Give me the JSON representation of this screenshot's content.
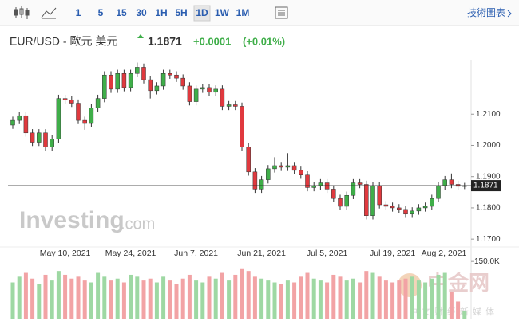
{
  "toolbar": {
    "intervals": [
      "1",
      "5",
      "15",
      "30",
      "1H",
      "5H",
      "1D",
      "1W",
      "1M"
    ],
    "active_index": 6,
    "link": "技術圖表"
  },
  "header": {
    "title": "EUR/USD - 歐元 美元",
    "price": "1.1871",
    "change": "+0.0001",
    "change_pct": "(+0.01%)"
  },
  "watermark": {
    "brand": "Investing",
    "suffix": ".com",
    "site": "中金网",
    "site_sub": "中文财经新媒体"
  },
  "chart_data": {
    "type": "candlestick",
    "categories": [
      null,
      null,
      null,
      null,
      null,
      null,
      null,
      null,
      "May 10, 2021",
      null,
      null,
      null,
      null,
      null,
      null,
      null,
      null,
      null,
      "May 24, 2021",
      null,
      null,
      null,
      null,
      null,
      null,
      null,
      null,
      null,
      "Jun 7, 2021",
      null,
      null,
      null,
      null,
      null,
      null,
      null,
      null,
      null,
      "Jun 21, 2021",
      null,
      null,
      null,
      null,
      null,
      null,
      null,
      null,
      null,
      "Jul 5, 2021",
      null,
      null,
      null,
      null,
      null,
      null,
      null,
      null,
      null,
      "Jul 19, 2021",
      null,
      null,
      null,
      null,
      null,
      null,
      null,
      null,
      null,
      "Aug 2, 2021",
      null
    ],
    "open": [
      1.2065,
      1.208,
      1.2095,
      1.204,
      1.201,
      1.204,
      1.1995,
      1.202,
      1.215,
      1.2145,
      1.2135,
      1.208,
      1.207,
      1.212,
      1.215,
      1.2225,
      1.218,
      1.223,
      1.2185,
      1.223,
      1.225,
      1.221,
      1.2175,
      1.219,
      1.223,
      1.2225,
      1.2215,
      1.219,
      1.214,
      1.218,
      1.2185,
      1.217,
      1.218,
      1.2125,
      1.213,
      1.2125,
      1.1995,
      1.1915,
      1.186,
      1.189,
      1.1925,
      1.1935,
      1.193,
      1.1935,
      1.192,
      1.1905,
      1.1865,
      1.187,
      1.188,
      1.186,
      1.183,
      1.1805,
      1.184,
      1.188,
      1.1875,
      1.1775,
      1.187,
      1.181,
      1.1805,
      1.18,
      1.1795,
      1.178,
      1.179,
      1.18,
      1.1805,
      1.183,
      1.187,
      1.189,
      1.1875,
      1.1869
    ],
    "high": [
      1.2092,
      1.2107,
      1.2107,
      1.2052,
      1.2052,
      1.2052,
      1.2032,
      1.2162,
      1.2162,
      1.2157,
      1.2147,
      1.2092,
      1.2132,
      1.2162,
      1.2237,
      1.2237,
      1.2242,
      1.2242,
      1.2242,
      1.2265,
      1.2262,
      1.2222,
      1.2202,
      1.2242,
      1.2242,
      1.2237,
      1.2227,
      1.2202,
      1.2192,
      1.2197,
      1.2197,
      1.2192,
      1.2192,
      1.2142,
      1.2142,
      1.2137,
      1.2007,
      1.1927,
      1.1902,
      1.1937,
      1.1962,
      1.1947,
      1.1975,
      1.1947,
      1.1932,
      1.1917,
      1.1882,
      1.1892,
      1.1892,
      1.1872,
      1.1842,
      1.1852,
      1.1892,
      1.1892,
      1.1887,
      1.1882,
      1.1882,
      1.1822,
      1.1817,
      1.1812,
      1.1807,
      1.1802,
      1.1812,
      1.1817,
      1.1842,
      1.1882,
      1.1902,
      1.191,
      1.1887,
      1.188
    ],
    "low": [
      1.2053,
      1.2068,
      1.2028,
      1.1998,
      1.1998,
      1.1983,
      1.1983,
      1.2008,
      1.2133,
      1.2123,
      1.2068,
      1.205,
      1.2058,
      1.2108,
      1.2138,
      1.2168,
      1.2168,
      1.2173,
      1.2173,
      1.2218,
      1.2198,
      1.215,
      1.2163,
      1.2178,
      1.2213,
      1.2203,
      1.2178,
      1.2128,
      1.2128,
      1.2168,
      1.2158,
      1.2158,
      1.2113,
      1.2113,
      1.2113,
      1.1983,
      1.1903,
      1.1848,
      1.1848,
      1.1878,
      1.1913,
      1.1918,
      1.1918,
      1.1908,
      1.1893,
      1.1853,
      1.1853,
      1.1858,
      1.1848,
      1.1818,
      1.1793,
      1.1793,
      1.1828,
      1.1863,
      1.1763,
      1.1763,
      1.1798,
      1.1793,
      1.1788,
      1.1783,
      1.1768,
      1.1768,
      1.1778,
      1.1788,
      1.1793,
      1.1818,
      1.1858,
      1.1863,
      1.1857,
      1.186
    ],
    "close": [
      1.208,
      1.2095,
      1.204,
      1.201,
      1.204,
      1.1995,
      1.202,
      1.215,
      1.2145,
      1.2135,
      1.208,
      1.207,
      1.212,
      1.215,
      1.2225,
      1.218,
      1.223,
      1.2185,
      1.223,
      1.225,
      1.221,
      1.2175,
      1.219,
      1.223,
      1.2225,
      1.2215,
      1.219,
      1.214,
      1.218,
      1.2185,
      1.217,
      1.218,
      1.2125,
      1.213,
      1.2125,
      1.1995,
      1.1915,
      1.186,
      1.189,
      1.1925,
      1.1935,
      1.193,
      1.1935,
      1.192,
      1.1905,
      1.1865,
      1.187,
      1.188,
      1.186,
      1.183,
      1.1805,
      1.184,
      1.188,
      1.1875,
      1.1775,
      1.187,
      1.181,
      1.1805,
      1.18,
      1.1795,
      1.178,
      1.179,
      1.18,
      1.1805,
      1.183,
      1.187,
      1.189,
      1.1875,
      1.1869,
      1.1871
    ],
    "up_color": "#3fae49",
    "down_color": "#e0393e",
    "ylim": [
      1.168,
      1.2274
    ],
    "yticks": [
      {
        "value": 1.17,
        "label": "1.1700"
      },
      {
        "value": 1.18,
        "label": "1.1800"
      },
      {
        "value": 1.19,
        "label": "1.1900"
      },
      {
        "value": 1.2,
        "label": "1.2000"
      },
      {
        "value": 1.21,
        "label": "1.2100"
      }
    ],
    "volume": {
      "values": [
        95000,
        110000,
        120000,
        105000,
        90000,
        115000,
        100000,
        125000,
        115000,
        105000,
        110000,
        100000,
        95000,
        120000,
        110000,
        100000,
        105000,
        95000,
        115000,
        110000,
        100000,
        105000,
        95000,
        110000,
        100000,
        90000,
        105000,
        115000,
        100000,
        95000,
        110000,
        105000,
        120000,
        100000,
        115000,
        130000,
        125000,
        110000,
        105000,
        100000,
        95000,
        90000,
        100000,
        95000,
        110000,
        120000,
        105000,
        100000,
        95000,
        115000,
        110000,
        100000,
        105000,
        95000,
        125000,
        120000,
        110000,
        100000,
        95000,
        100000,
        105000,
        110000,
        100000,
        95000,
        105000,
        115000,
        120000,
        70000,
        45000,
        20000
      ],
      "up_color": "#9ed8a3",
      "down_color": "#f2a3a5",
      "ylim": [
        0,
        165000
      ],
      "yticks": [
        {
          "value": 150000,
          "label": "150.0K"
        }
      ]
    }
  }
}
